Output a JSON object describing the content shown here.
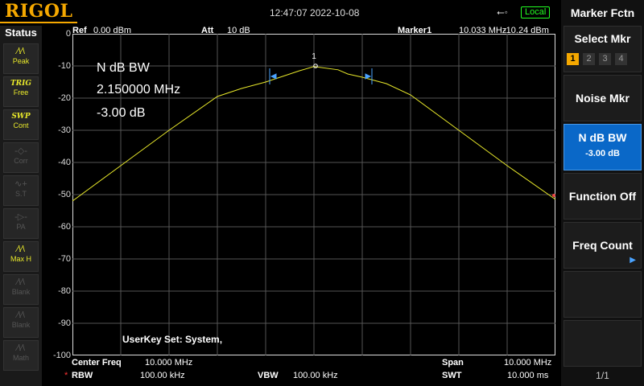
{
  "header": {
    "logo": "RIGOL",
    "datetime": "12:47:07 2022-10-08",
    "usb_icon": "usb-icon",
    "local_badge": "Local",
    "ref_label": "Ref",
    "ref_value": "0.00 dBm",
    "att_label": "Att",
    "att_value": "10 dB",
    "marker_label": "Marker1",
    "marker_freq": "10.033 MHz",
    "marker_level": "-10.24 dBm"
  },
  "status": {
    "title": "Status",
    "items": [
      {
        "icon": "peak-icon",
        "glyph": "∿∿",
        "label": "Peak",
        "state": "on"
      },
      {
        "icon": "trig-icon",
        "glyph": "TRIG",
        "label": "Free",
        "state": "on"
      },
      {
        "icon": "sweep-icon",
        "glyph": "SWP",
        "label": "Cont",
        "state": "on"
      },
      {
        "icon": "corr-icon",
        "glyph": "-◇-",
        "label": "Corr",
        "state": "off"
      },
      {
        "icon": "source-icon",
        "glyph": "∿+",
        "label": "S.T",
        "state": "off"
      },
      {
        "icon": "preamp-icon",
        "glyph": "-▷-",
        "label": "PA",
        "state": "off"
      },
      {
        "icon": "maxhold-icon",
        "glyph": "∿∿",
        "label": "Max H",
        "state": "on"
      },
      {
        "icon": "blank-icon",
        "glyph": "∿∿",
        "label": "Blank",
        "state": "off"
      },
      {
        "icon": "blank-icon",
        "glyph": "∿∿",
        "label": "Blank",
        "state": "off"
      },
      {
        "icon": "math-icon",
        "glyph": "∿∿",
        "label": "Math",
        "state": "off"
      }
    ]
  },
  "display": {
    "y_ticks": [
      "0",
      "-10",
      "-20",
      "-30",
      "-40",
      "-50",
      "-60",
      "-70",
      "-80",
      "-90",
      "-100"
    ],
    "marker_number": "1",
    "ndb_title": "N dB BW",
    "ndb_bw": "2.150000 MHz",
    "ndb_level": "-3.00 dB",
    "userkey": "UserKey Set:   System,",
    "trace_color": "#e8e82a",
    "trace": {
      "x_mhz": [
        5.0,
        6.0,
        7.0,
        8.0,
        8.5,
        9.0,
        9.5,
        9.7,
        10.0,
        10.5,
        10.7,
        11.0,
        11.5,
        12.0,
        13.0,
        14.0,
        15.0
      ],
      "y_dbm": [
        -52,
        -41,
        -30,
        -19.5,
        -17,
        -15,
        -12.5,
        -11.5,
        -10.2,
        -11.2,
        -12.5,
        -13.5,
        -15.5,
        -19,
        -30,
        -41,
        -51.5
      ]
    }
  },
  "bottom": {
    "center_label": "Center Freq",
    "center_value": "10.000 MHz",
    "span_label": "Span",
    "span_value": "10.000 MHz",
    "rbw_star": "*",
    "rbw_label": "RBW",
    "rbw_value": "100.00 kHz",
    "vbw_label": "VBW",
    "vbw_value": "100.00 kHz",
    "swt_label": "SWT",
    "swt_value": "10.000 ms"
  },
  "menu": {
    "title": "Marker Fctn",
    "select_mkr": "Select Mkr",
    "mkr_numbers": [
      "1",
      "2",
      "3",
      "4"
    ],
    "noise_mkr": "Noise Mkr",
    "ndb_bw": "N dB BW",
    "ndb_value": "-3.00 dB",
    "function_off": "Function Off",
    "freq_count": "Freq Count",
    "page": "1/1"
  }
}
